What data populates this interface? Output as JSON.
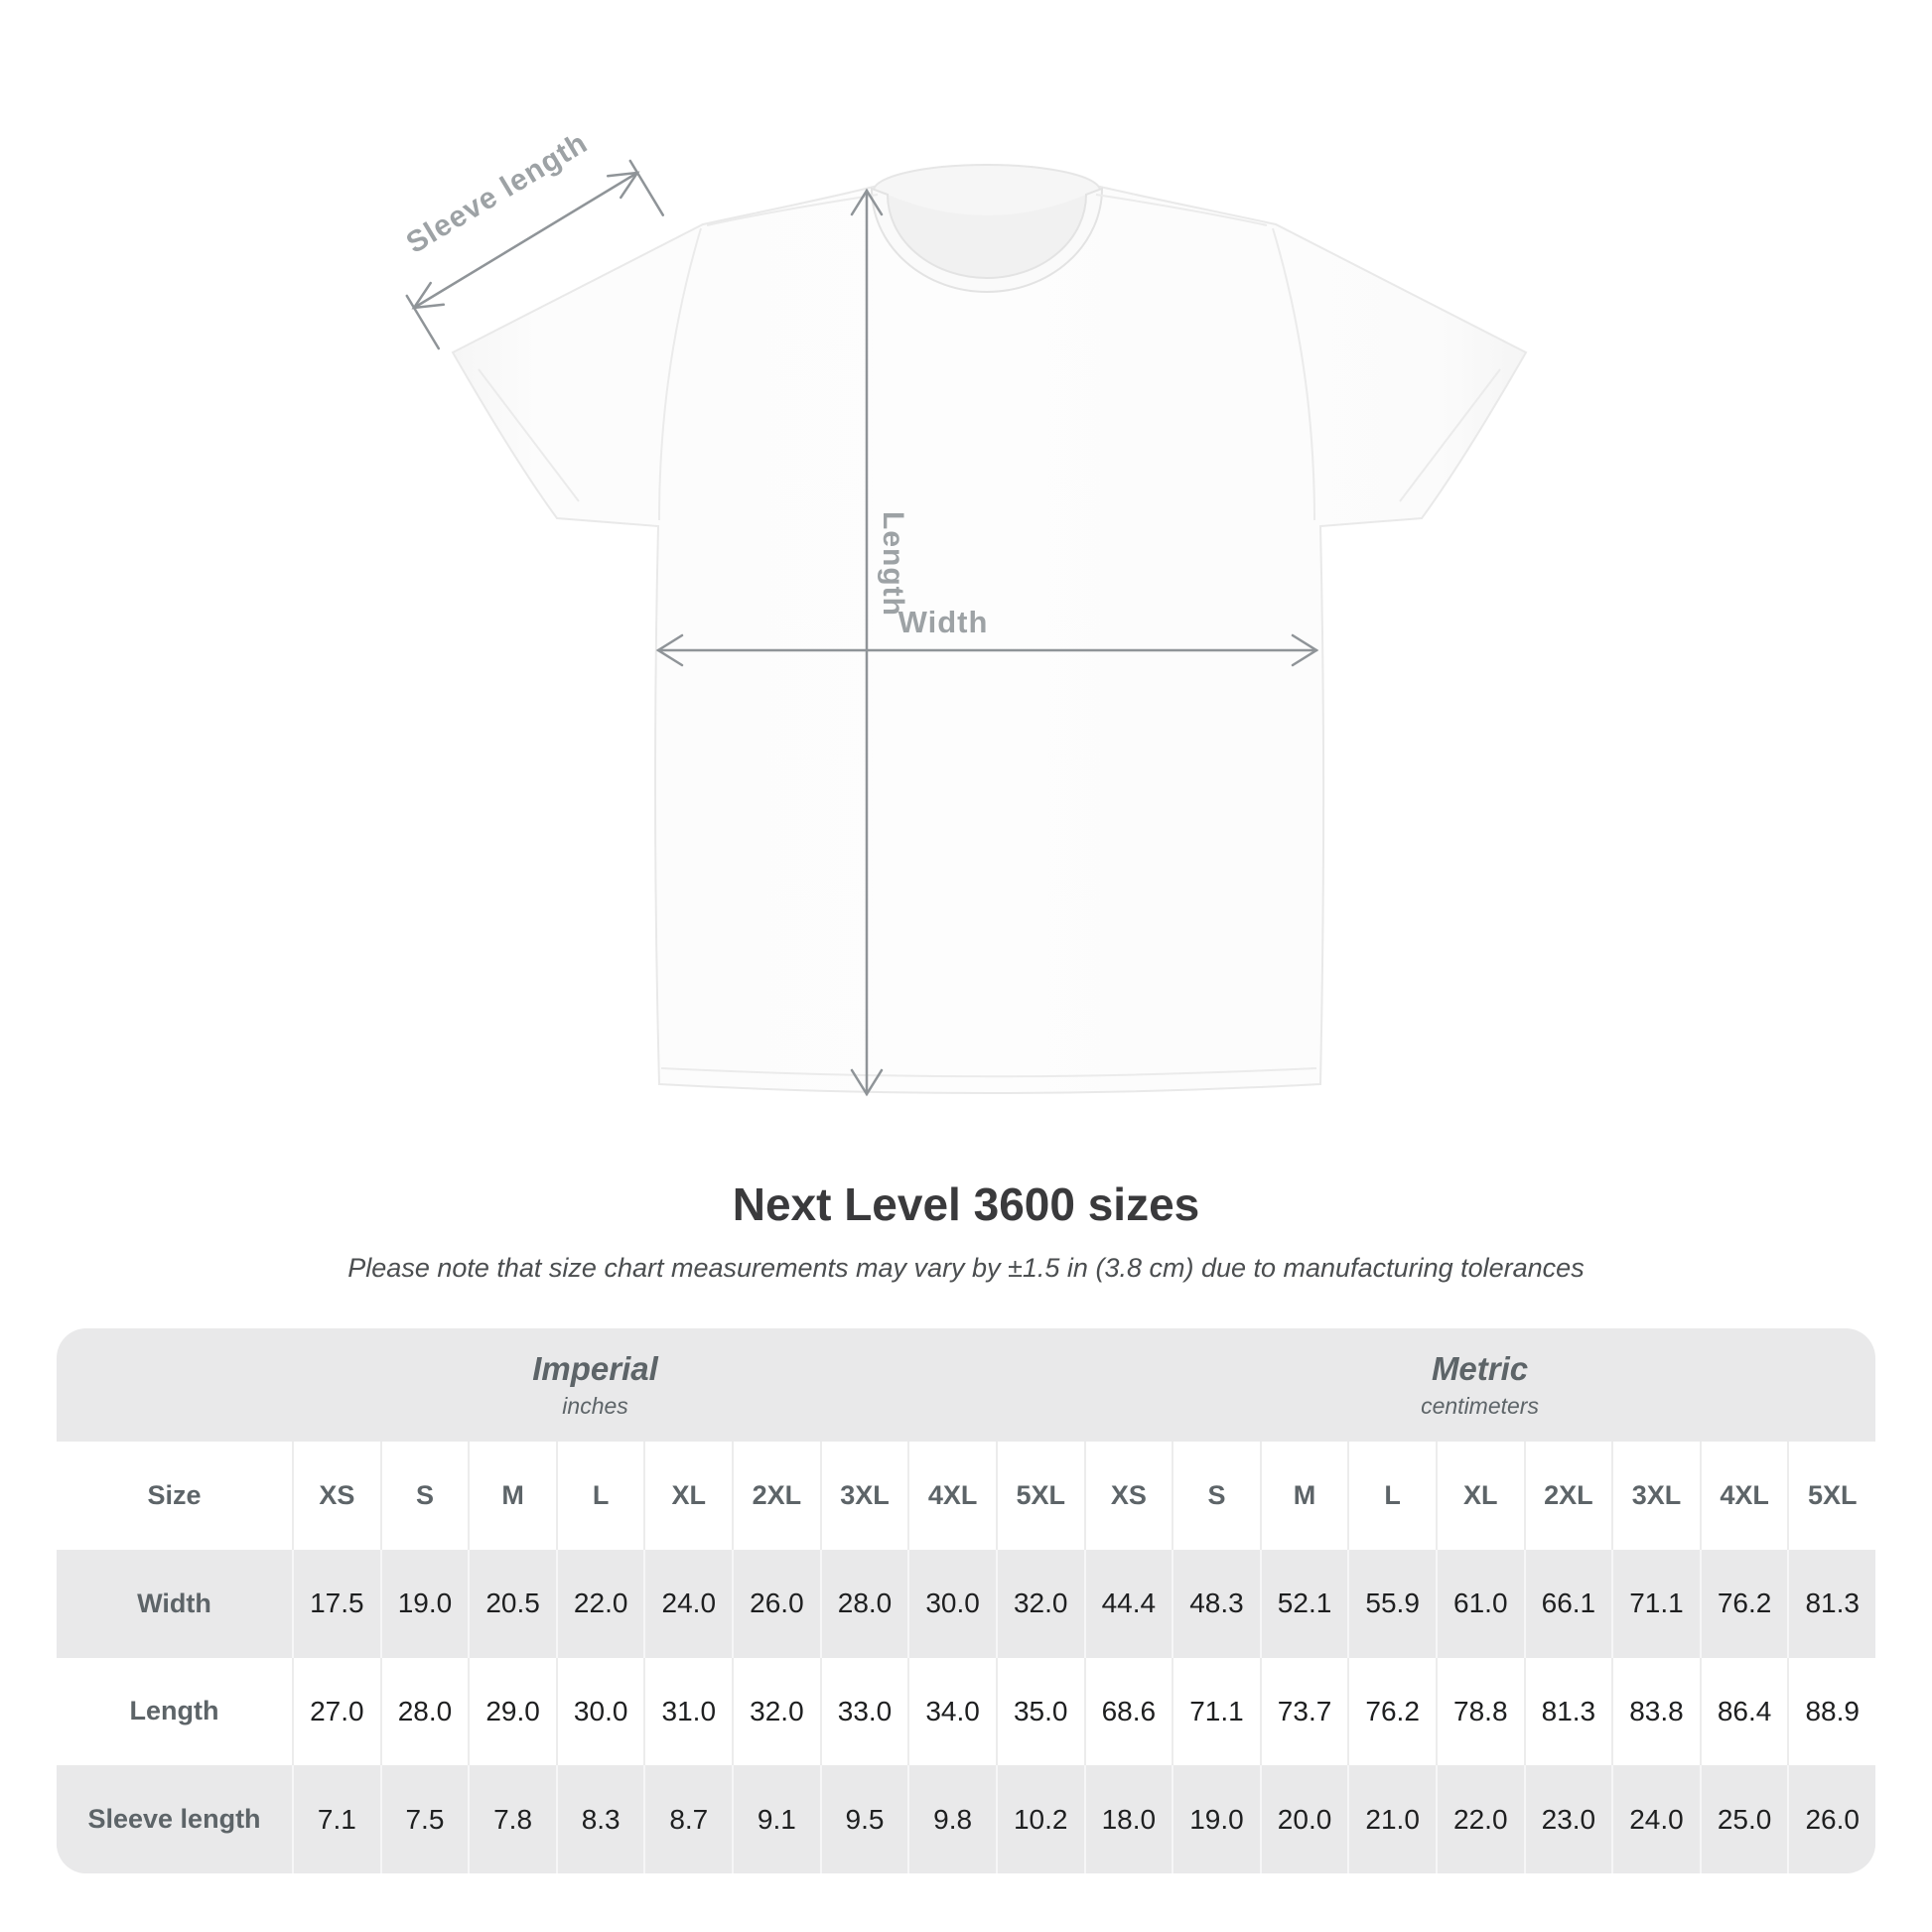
{
  "diagram": {
    "labels": {
      "sleeve_length": "Sleeve length",
      "length": "Length",
      "width": "Width"
    }
  },
  "title": "Next Level 3600 sizes",
  "subtitle": "Please note that size chart measurements may vary by ±1.5 in (3.8 cm) due to manufacturing tolerances",
  "table": {
    "unit_groups": [
      {
        "name": "Imperial",
        "unit": "inches"
      },
      {
        "name": "Metric",
        "unit": "centimeters"
      }
    ],
    "size_label": "Size",
    "sizes": [
      "XS",
      "S",
      "M",
      "L",
      "XL",
      "2XL",
      "3XL",
      "4XL",
      "5XL"
    ],
    "rows": [
      {
        "label": "Width",
        "imperial": [
          "17.5",
          "19.0",
          "20.5",
          "22.0",
          "24.0",
          "26.0",
          "28.0",
          "30.0",
          "32.0"
        ],
        "metric": [
          "44.4",
          "48.3",
          "52.1",
          "55.9",
          "61.0",
          "66.1",
          "71.1",
          "76.2",
          "81.3"
        ]
      },
      {
        "label": "Length",
        "imperial": [
          "27.0",
          "28.0",
          "29.0",
          "30.0",
          "31.0",
          "32.0",
          "33.0",
          "34.0",
          "35.0"
        ],
        "metric": [
          "68.6",
          "71.1",
          "73.7",
          "76.2",
          "78.8",
          "81.3",
          "83.8",
          "86.4",
          "88.9"
        ]
      },
      {
        "label": "Sleeve length",
        "imperial": [
          "7.1",
          "7.5",
          "7.8",
          "8.3",
          "8.7",
          "9.1",
          "9.5",
          "9.8",
          "10.2"
        ],
        "metric": [
          "18.0",
          "19.0",
          "20.0",
          "21.0",
          "22.0",
          "23.0",
          "24.0",
          "25.0",
          "26.0"
        ]
      }
    ]
  },
  "colors": {
    "table_band_bg": "#e9e9ea",
    "dimension_line": "#8f9498",
    "diagram_label_text": "#9da2a5",
    "header_text": "#5d6468",
    "value_text": "#1e1f20",
    "title_text": "#3a3a3c"
  }
}
